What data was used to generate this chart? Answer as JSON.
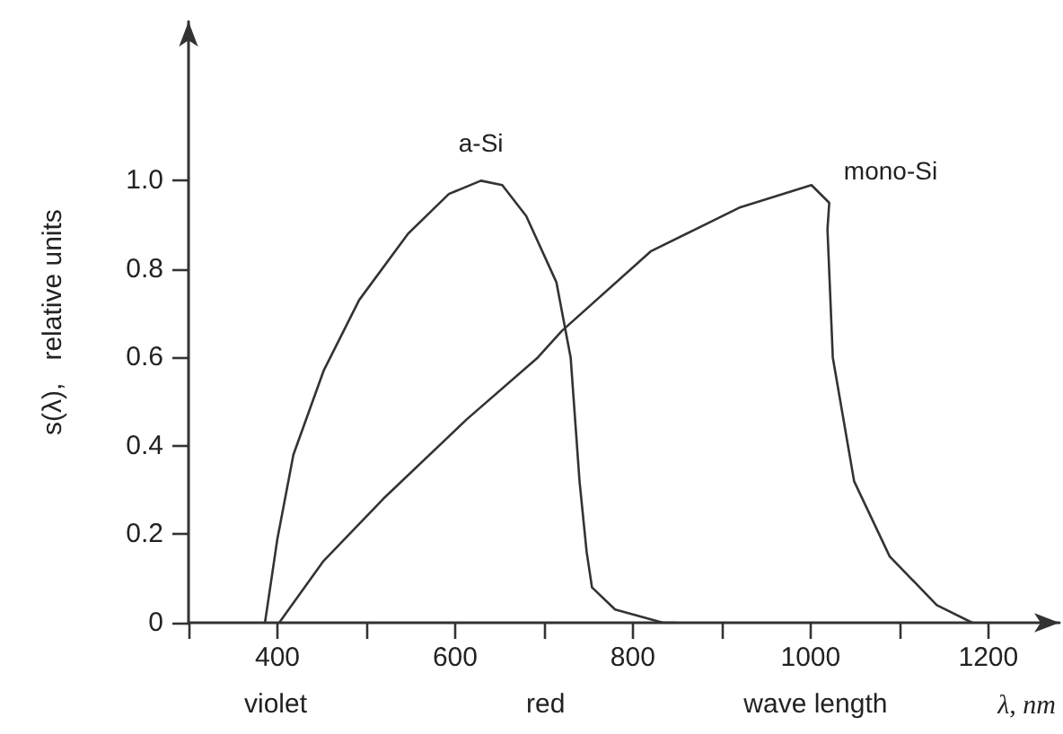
{
  "chart_data": {
    "type": "line",
    "xlabel": "λ, nm",
    "ylabel": "s(λ),   relative units",
    "annotations": [
      "violet",
      "red",
      "wave length"
    ],
    "xlim": [
      300,
      1280
    ],
    "ylim": [
      0,
      1.36
    ],
    "xticks": [
      {
        "value": 300,
        "label": null
      },
      400,
      {
        "value": 500,
        "label": null
      },
      600,
      {
        "value": 700,
        "label": null
      },
      800,
      {
        "value": 900,
        "label": null
      },
      1000,
      {
        "value": 1100,
        "label": null
      },
      1200
    ],
    "yticks": [
      {
        "value": 0,
        "label": "0"
      },
      0.2,
      0.4,
      0.6,
      0.8,
      {
        "value": 1,
        "label": "1.0"
      }
    ],
    "grid": false,
    "legend": false,
    "marker": "none",
    "line_style": "solid",
    "series": [
      {
        "name": "a-Si",
        "color": "#333333",
        "x": [
          386,
          400,
          418,
          452,
          492,
          547,
          593,
          629,
          653,
          680,
          714,
          730,
          740,
          748,
          754,
          780,
          834,
          848
        ],
        "values": [
          0,
          0.19,
          0.38,
          0.57,
          0.73,
          0.88,
          0.97,
          1.0,
          0.99,
          0.92,
          0.77,
          0.6,
          0.32,
          0.16,
          0.08,
          0.03,
          0,
          0
        ]
      },
      {
        "name": "mono-Si",
        "color": "#333333",
        "x": [
          402,
          452,
          519,
          613,
          693,
          720,
          820,
          921,
          1001,
          1021,
          1019,
          1025,
          1049,
          1089,
          1142,
          1182
        ],
        "values": [
          0,
          0.14,
          0.28,
          0.46,
          0.6,
          0.66,
          0.84,
          0.94,
          0.99,
          0.95,
          0.89,
          0.6,
          0.32,
          0.15,
          0.04,
          0
        ]
      }
    ]
  }
}
